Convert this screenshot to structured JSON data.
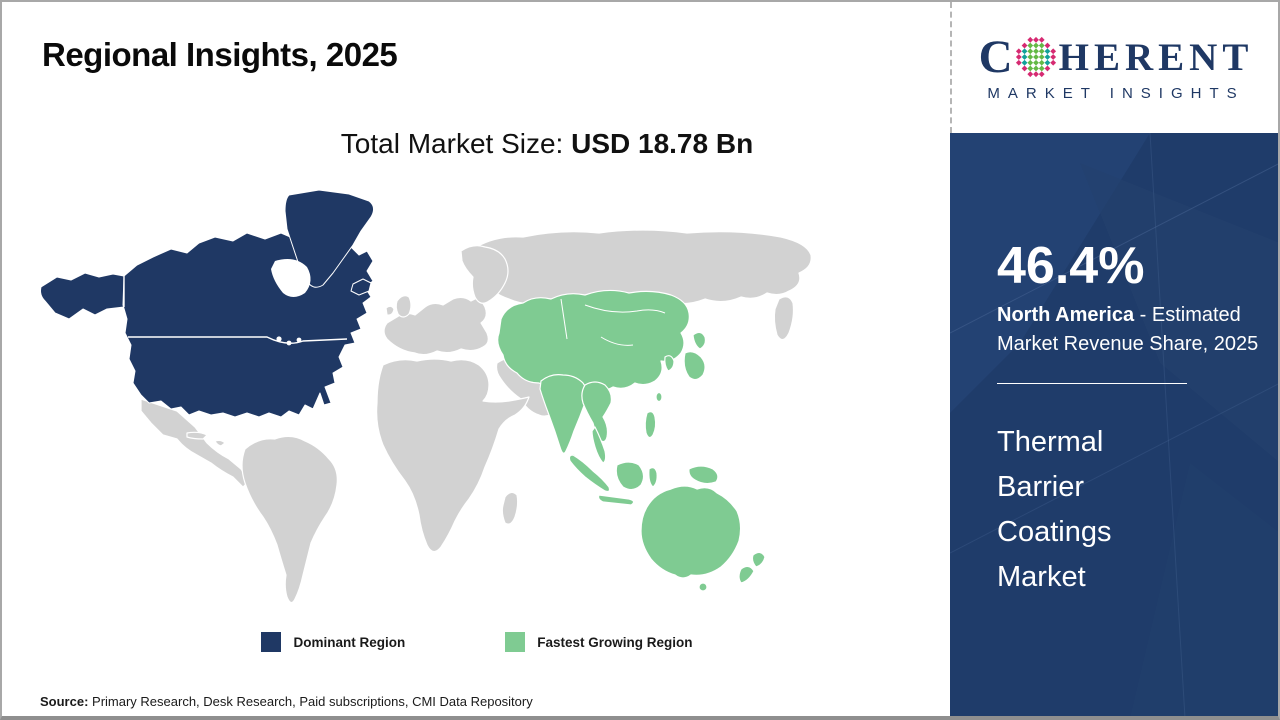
{
  "header": {
    "title": "Regional Insights, 2025",
    "market_size_label": "Total Market Size: ",
    "market_size_value": "USD 18.78 Bn"
  },
  "logo": {
    "brand_prefix": "C",
    "brand_suffix": "HERENT",
    "tagline": "MARKET INSIGHTS",
    "brand_color": "#1F3864",
    "globe_dot_colors": [
      "#12a19a",
      "#64b946",
      "#d62a72"
    ]
  },
  "map": {
    "regions": [
      {
        "name": "North America",
        "role": "Dominant Region",
        "color": "#1F3864"
      },
      {
        "name": "Asia Pacific",
        "role": "Fastest Growing Region",
        "color": "#7FCB92"
      },
      {
        "name": "Rest of World",
        "role": "Other",
        "color": "#D2D2D2"
      }
    ],
    "legend": [
      {
        "label": "Dominant Region",
        "color": "#1F3864"
      },
      {
        "label": "Fastest Growing Region",
        "color": "#7FCB92"
      }
    ]
  },
  "sidebar": {
    "share_value": "46.4%",
    "share_region": "North America",
    "share_desc": " - Estimated Market Revenue Share, 2025",
    "market_name": "Thermal\nBarrier\nCoatings\nMarket",
    "background_color": "#1F3C6A"
  },
  "footer": {
    "source_label": "Source:",
    "source_text": " Primary Research, Desk Research, Paid subscriptions, CMI Data Repository"
  }
}
